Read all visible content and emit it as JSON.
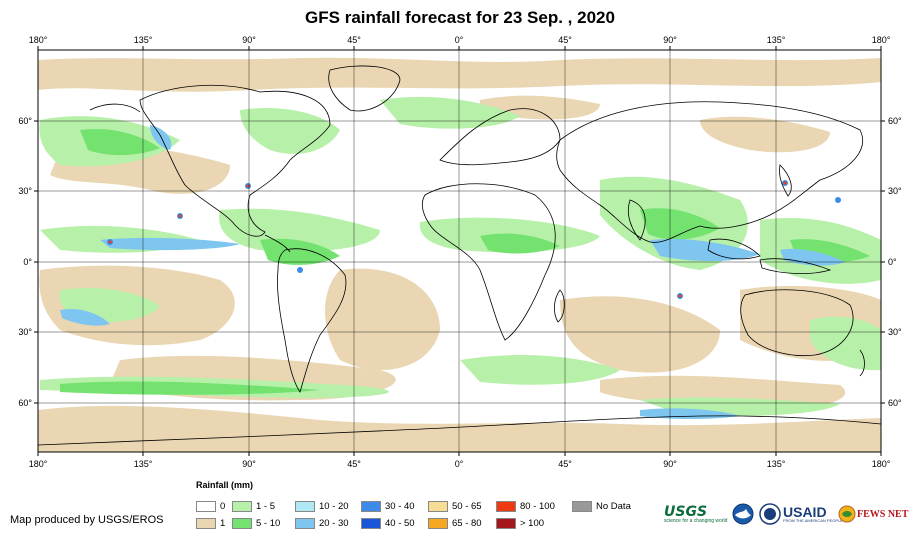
{
  "title": "GFS rainfall forecast for 23 Sep. , 2020",
  "top_ticks": [
    "180°",
    "135°",
    "90°",
    "45°",
    "0°",
    "45°",
    "90°",
    "135°",
    "180°"
  ],
  "bottom_ticks": [
    "180°",
    "135°",
    "90°",
    "45°",
    "0°",
    "45°",
    "90°",
    "135°",
    "180°"
  ],
  "lat_ticks_left": [
    "60°",
    "30°",
    "0°",
    "30°",
    "60°"
  ],
  "lat_ticks_right": [
    "60°",
    "30°",
    "0°",
    "30°",
    "60°"
  ],
  "legend": {
    "title": "Rainfall (mm)",
    "items": [
      {
        "label": "0",
        "color": "#ffffff"
      },
      {
        "label": "1",
        "color": "#ead6b2"
      },
      {
        "label": "1 - 5",
        "color": "#b7f0a8"
      },
      {
        "label": "5 - 10",
        "color": "#74e26f"
      },
      {
        "label": "10 - 20",
        "color": "#b0e8f6"
      },
      {
        "label": "20 - 30",
        "color": "#7ec6f0"
      },
      {
        "label": "30 - 40",
        "color": "#3e8ae8"
      },
      {
        "label": "40 - 50",
        "color": "#1a56d8"
      },
      {
        "label": "50 - 65",
        "color": "#f7dc96"
      },
      {
        "label": "65 - 80",
        "color": "#f5a623"
      },
      {
        "label": "80 - 100",
        "color": "#ee3a10"
      },
      {
        "label": "> 100",
        "color": "#a5171b"
      },
      {
        "label": "No Data",
        "color": "#999999"
      }
    ]
  },
  "credit": "Map produced by USGS/EROS",
  "logos": {
    "usgs": "USGS",
    "usgs_tagline": "science for a changing world",
    "usaid": "USAID",
    "usaid_tagline": "FROM THE AMERICAN PEOPLE",
    "fews": "FEWS NET"
  },
  "colors": {
    "dry": "#ead6b2",
    "light": "#b7f0a8",
    "moderate": "#74e26f",
    "heavy": "#7ec6f0",
    "very_heavy": "#3e8ae8",
    "extreme": "#ee3a10"
  }
}
